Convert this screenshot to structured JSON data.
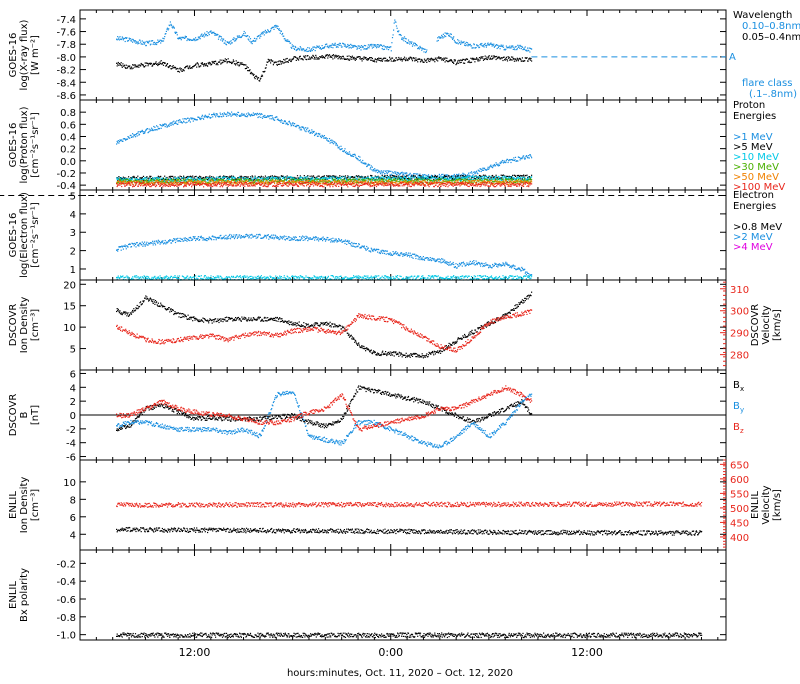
{
  "xaxis": {
    "label": "hours:minutes, Oct. 11, 2020 – Oct. 12, 2020",
    "ticks": [
      "12:00",
      "0:00",
      "12:00"
    ]
  },
  "colors": {
    "black": "#000000",
    "blue": "#1a8fe0",
    "cyan": "#00c8e6",
    "green": "#4ab000",
    "orange": "#f08000",
    "red": "#e8261c",
    "magenta": "#e000e0"
  },
  "chart_data": [
    {
      "id": "xray",
      "type": "scatter",
      "ylabel": [
        "GOES-16",
        "log(X-ray flux)",
        "[W m⁻²]"
      ],
      "yticks": [
        "-7.4",
        "-7.6",
        "-7.8",
        "-8.0",
        "-8.2",
        "-8.4",
        "-8.6"
      ],
      "ylim": [
        -8.65,
        -7.25
      ],
      "legend": {
        "heading": "Wavelength",
        "items": [
          {
            "text": "0.10–0.8nm",
            "color": "blue"
          },
          {
            "text": "0.05–0.4nm",
            "color": "black"
          }
        ],
        "flare_marker": "A",
        "flare_class": [
          "flare class",
          "(.1–.8nm)"
        ]
      },
      "series": [
        {
          "name": "0.10–0.8nm",
          "color": "blue",
          "x": [
            0,
            1,
            2,
            3,
            4,
            5,
            6,
            7,
            8,
            9,
            10,
            11,
            12,
            13,
            14,
            15,
            16,
            17,
            18,
            19,
            20,
            21,
            22,
            23,
            24,
            25,
            26,
            27,
            28,
            29,
            30,
            31,
            32,
            33,
            34,
            35,
            36,
            37,
            38,
            39,
            40,
            41,
            42,
            43,
            44,
            45,
            46,
            47,
            48,
            49,
            50,
            51,
            52,
            53,
            54,
            55,
            56,
            57,
            58,
            59,
            60,
            61,
            62,
            63,
            64,
            65,
            66,
            67,
            68,
            69,
            70,
            71,
            72,
            73,
            74,
            75,
            76,
            77,
            78,
            79,
            80,
            81,
            82,
            83,
            84,
            85,
            86,
            87,
            88,
            89,
            90,
            91,
            92,
            93,
            94,
            95,
            96,
            97,
            98,
            99,
            100,
            101,
            102,
            103,
            104,
            105,
            106,
            107,
            108,
            109,
            110,
            111,
            112,
            113,
            114,
            115,
            116,
            117,
            118,
            119,
            120,
            121,
            122,
            123,
            124,
            125,
            126,
            127,
            128,
            129,
            130,
            131,
            132,
            133,
            134,
            135,
            136,
            137,
            138,
            139,
            140,
            141,
            142,
            143,
            144,
            145,
            146,
            147,
            148,
            149,
            150,
            151,
            152,
            153,
            154,
            155,
            156,
            157,
            158,
            159,
            160,
            161,
            162,
            163,
            164,
            165,
            166,
            167,
            168,
            169,
            170,
            171,
            172,
            173,
            174,
            175,
            176,
            177,
            178,
            179,
            180,
            181,
            182,
            183,
            184,
            185,
            186,
            187,
            188,
            189,
            190,
            191,
            192,
            193,
            194,
            195,
            196,
            197,
            198,
            199,
            200,
            201,
            202,
            203,
            204,
            205,
            206,
            207,
            208,
            209,
            210,
            211,
            212,
            213,
            214,
            215,
            216,
            217,
            218,
            219,
            220,
            221,
            222,
            223,
            224,
            225,
            226,
            227,
            228,
            229,
            230,
            231,
            232,
            233,
            234,
            235,
            236,
            237,
            238,
            239,
            240,
            241,
            242,
            243,
            244,
            245,
            246,
            247,
            248,
            249,
            250,
            251,
            252,
            253,
            254,
            255,
            256,
            257,
            258,
            259,
            260,
            261,
            262,
            263,
            264,
            265,
            266,
            267,
            268,
            269,
            270,
            271,
            272,
            273,
            274,
            275,
            276,
            277,
            278,
            279,
            280,
            281,
            282,
            283,
            284,
            285,
            286,
            287,
            288,
            289,
            290,
            291,
            292,
            293,
            294,
            295,
            296,
            297,
            298,
            299,
            300,
            301,
            302,
            303,
            304,
            305,
            306,
            307,
            308,
            309,
            310,
            311,
            312,
            313,
            314,
            315,
            316,
            317,
            318,
            319,
            320,
            321,
            322,
            323,
            324,
            325,
            326,
            327,
            328,
            329,
            330,
            331,
            332,
            333,
            334,
            335,
            336,
            337,
            338,
            339,
            340,
            341,
            342,
            343,
            344,
            345,
            346,
            347,
            348,
            349,
            350,
            351,
            352,
            353,
            354,
            355,
            356,
            357,
            358,
            359,
            360,
            361,
            362,
            363,
            364,
            365,
            366,
            367,
            368,
            369,
            370,
            371,
            372,
            373,
            374,
            375,
            376,
            377,
            378,
            379,
            380,
            381,
            382,
            383,
            384,
            385,
            386,
            387,
            388,
            389,
            390,
            391,
            392,
            393,
            394,
            395,
            396,
            397,
            398,
            399,
            400,
            401,
            402,
            403,
            404,
            405,
            406,
            407,
            408,
            409,
            410,
            411,
            412,
            413,
            414,
            415,
            416,
            417,
            418,
            419,
            420,
            421,
            422,
            423,
            424,
            425,
            426,
            427,
            428,
            429,
            430,
            431,
            432,
            433,
            434,
            435,
            436,
            437,
            438,
            439,
            440,
            441,
            442,
            443,
            444,
            445,
            446,
            447,
            448,
            449,
            450,
            451,
            452,
            453,
            454,
            455,
            456,
            457,
            458,
            459,
            460,
            461,
            462,
            463,
            464,
            465,
            466,
            467,
            468,
            469,
            470,
            471,
            472,
            473,
            474,
            475,
            476,
            477,
            478,
            479,
            480,
            481,
            482,
            483,
            484,
            485,
            486,
            487,
            488,
            489,
            490,
            491,
            492,
            493,
            494,
            495,
            496,
            497,
            498,
            499,
            500,
            501,
            502,
            503,
            504,
            505,
            506,
            507,
            508,
            509,
            510,
            511,
            512,
            513,
            514,
            515,
            516,
            517,
            518,
            519,
            520,
            521,
            522,
            523,
            524,
            525,
            526,
            527,
            528,
            529,
            530,
            531,
            532,
            533,
            534,
            535,
            536,
            537,
            538,
            539,
            540,
            541,
            542,
            543,
            544,
            545,
            546,
            547,
            548,
            549,
            550,
            551,
            552,
            553,
            554,
            555,
            556,
            557,
            558,
            559,
            560,
            561,
            562,
            563,
            564,
            565,
            566,
            567,
            568,
            569,
            570,
            571,
            572,
            573,
            574,
            575,
            576,
            577,
            578,
            579,
            580,
            581,
            582,
            583,
            584,
            585,
            586,
            587,
            588,
            589,
            590,
            591,
            592,
            593,
            594,
            595,
            596,
            597,
            598,
            599,
            600,
            601,
            602,
            603,
            604,
            605,
            606,
            607,
            608,
            609,
            610,
            611,
            612,
            613,
            614,
            615,
            616,
            617,
            618,
            619,
            620,
            621,
            622,
            623,
            624,
            625,
            626,
            627,
            628,
            629,
            630,
            631,
            632,
            633,
            634,
            635,
            636,
            637,
            638,
            639,
            640,
            641,
            642,
            643,
            644,
            645,
            646,
            647,
            648,
            649,
            650,
            651,
            652,
            653,
            654,
            655,
            656,
            657,
            658,
            659,
            660,
            661,
            662,
            663,
            664,
            665,
            666,
            667,
            668,
            669,
            670,
            671,
            672,
            673,
            674,
            675,
            676,
            677,
            678,
            679,
            680,
            681,
            682,
            683,
            684,
            685,
            686,
            687,
            688,
            689,
            690,
            691,
            692,
            693,
            694,
            695,
            696,
            697,
            698,
            699,
            700,
            701,
            702,
            703,
            704,
            705,
            706,
            707,
            708,
            709,
            710,
            711,
            712,
            713,
            714,
            715,
            716,
            717,
            718,
            719,
            720,
            721,
            722,
            723,
            724,
            725,
            726,
            727,
            728,
            729,
            730,
            731,
            732,
            733,
            734,
            735,
            736,
            737,
            738,
            739,
            740,
            741,
            742,
            743,
            744,
            745,
            746,
            747,
            748,
            749,
            750,
            751,
            752,
            753,
            754,
            755,
            756,
            757,
            758,
            759,
            760,
            761,
            762,
            763,
            764,
            765,
            766,
            767,
            768,
            769,
            770,
            771,
            772,
            773,
            774,
            775,
            776,
            777,
            778,
            779,
            780,
            781,
            782,
            783,
            784,
            785,
            786,
            787,
            788,
            789,
            790,
            791,
            792,
            793,
            794,
            795,
            796,
            797,
            798,
            799,
            800,
            801,
            802,
            803,
            804,
            805,
            806,
            807,
            808,
            809,
            810,
            811,
            812,
            813,
            814,
            815,
            816,
            817,
            818,
            819,
            820,
            821,
            822,
            823,
            824,
            825,
            826,
            827,
            828,
            829,
            830,
            831,
            832,
            833,
            834,
            835,
            836,
            837,
            838,
            839,
            840,
            841,
            842,
            843,
            844,
            845,
            846,
            847,
            848,
            849,
            850,
            851,
            852,
            853,
            854,
            855,
            856,
            857,
            858,
            859,
            860,
            861,
            862,
            863,
            864,
            865,
            866,
            867,
            868,
            869,
            870,
            871,
            872,
            873,
            874,
            875,
            876,
            877,
            878,
            879,
            880,
            881,
            882,
            883,
            884,
            885,
            886,
            887,
            888,
            889,
            890,
            891,
            892,
            893,
            894,
            895,
            896,
            897,
            898,
            899,
            900,
            901,
            902,
            903,
            904,
            905,
            906,
            907,
            908,
            909,
            910,
            911,
            912,
            913,
            914,
            915,
            916,
            917,
            918,
            919,
            920,
            921,
            922,
            923,
            924,
            925,
            926,
            927,
            928,
            929,
            930,
            931,
            932,
            933,
            934,
            935,
            936,
            937,
            938,
            939,
            940,
            941,
            942,
            943,
            944,
            945,
            946,
            947,
            948,
            949,
            950,
            951,
            952,
            953,
            954,
            955,
            956,
            957,
            958,
            959,
            960,
            961,
            962,
            963,
            964,
            965,
            966,
            967,
            968,
            969,
            970,
            971,
            972,
            973,
            974,
            975,
            976,
            977,
            978,
            979,
            980,
            981,
            982,
            983,
            984,
            985,
            986,
            987,
            988,
            989,
            990,
            991,
            992,
            993,
            994,
            995,
            996,
            997,
            998,
            999,
            1000,
            1001,
            1002,
            1003,
            1004,
            1005,
            1006,
            1007,
            1008,
            1009,
            1010,
            1011,
            1012,
            1013,
            1014,
            1015,
            1016,
            1017,
            1018,
            1019,
            1020,
            1021,
            1022,
            1023,
            1024,
            1025,
            1026,
            1027,
            1028,
            1029,
            1030,
            1031,
            1032,
            1033,
            1034,
            1035,
            1036,
            1037,
            1038,
            1039,
            1040,
            1041,
            1042,
            1043,
            1044,
            1045,
            1046,
            1047,
            1048,
            1049,
            1050,
            1051,
            1052,
            1053,
            1054,
            1055,
            1056,
            1057,
            1058,
            1059,
            1060,
            1061,
            1062,
            1063,
            1064,
            1065,
            1066,
            1067,
            1068,
            1069,
            1070,
            1071,
            1072,
            1073,
            1074,
            1075,
            1076,
            1077,
            1078,
            1079,
            1080
          ],
          "y_keys": [
            [
              -7.72,
              -7.78
            ],
            [
              -7.7,
              -7.8
            ]
          ]
        }
      ]
    }
  ]
}
